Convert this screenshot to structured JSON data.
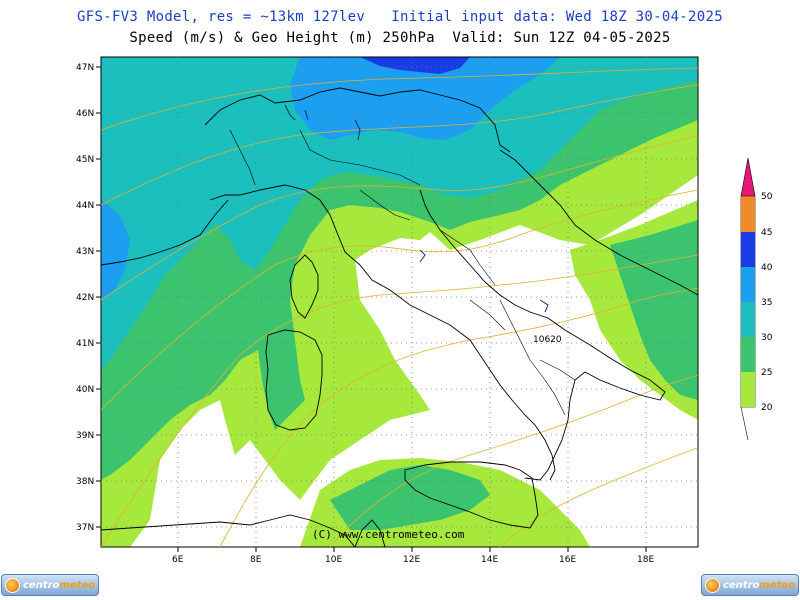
{
  "header": {
    "title_line1": "GFS-FV3 Model, res = ~13km 127lev   Initial input data: Wed 18Z 30-04-2025",
    "title_line2": "Speed (m/s) & Geo Height (m) 250hPa  Valid: Sun 12Z 04-05-2025"
  },
  "map": {
    "lat_labels": [
      "47N",
      "46N",
      "45N",
      "44N",
      "43N",
      "42N",
      "41N",
      "40N",
      "39N",
      "38N",
      "37N"
    ],
    "lon_labels": [
      "6E",
      "8E",
      "10E",
      "12E",
      "14E",
      "16E",
      "18E"
    ],
    "contour_label": "10620",
    "copyright": "(C) www.centrometeo.com"
  },
  "legend": {
    "values": [
      "20",
      "25",
      "30",
      "35",
      "40",
      "45",
      "50"
    ],
    "colors": [
      "#a6e83c",
      "#3cc36e",
      "#1bbfbd",
      "#1c9ff0",
      "#1a3ce6",
      "#f0892a",
      "#e8157a"
    ]
  },
  "logo": {
    "brand_prefix": "centro",
    "brand_suffix": "meteo"
  }
}
